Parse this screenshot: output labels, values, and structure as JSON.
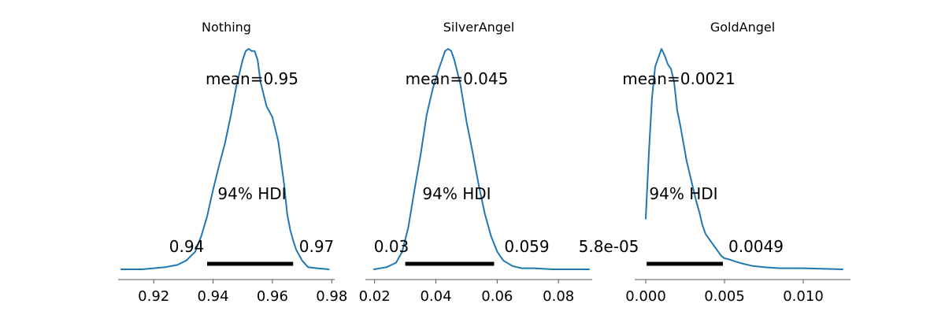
{
  "chart_data": [
    {
      "type": "line",
      "title": "Nothing",
      "color": "#1f77b4",
      "xlim": [
        0.908,
        0.981
      ],
      "xticks": [
        0.92,
        0.94,
        0.96,
        0.98
      ],
      "xtick_labels": [
        "0.92",
        "0.94",
        "0.96",
        "0.98"
      ],
      "mean_label": "mean=0.95",
      "hdi_label": "94% HDI",
      "hdi": [
        0.938,
        0.967
      ],
      "hdi_labels": [
        "0.94",
        "0.97"
      ],
      "density_max": 1.0,
      "series": [
        {
          "x": [
            0.909,
            0.912,
            0.916,
            0.92,
            0.924,
            0.928,
            0.931,
            0.934,
            0.936,
            0.938,
            0.94,
            0.942,
            0.944,
            0.946,
            0.948,
            0.95,
            0.951,
            0.952,
            0.953,
            0.954,
            0.955,
            0.956,
            0.958,
            0.96,
            0.962,
            0.963,
            0.964,
            0.965,
            0.966,
            0.967,
            0.968,
            0.97,
            0.972,
            0.975,
            0.979
          ],
          "y": [
            0.0,
            0.0,
            0.0,
            0.005,
            0.01,
            0.02,
            0.04,
            0.08,
            0.15,
            0.24,
            0.36,
            0.47,
            0.57,
            0.7,
            0.84,
            0.95,
            0.99,
            1.0,
            0.99,
            0.99,
            0.95,
            0.85,
            0.74,
            0.69,
            0.58,
            0.48,
            0.38,
            0.25,
            0.18,
            0.13,
            0.09,
            0.04,
            0.01,
            0.005,
            0.0
          ]
        }
      ]
    },
    {
      "type": "line",
      "title": "SilverAngel",
      "color": "#1f77b4",
      "xlim": [
        0.017,
        0.091
      ],
      "xticks": [
        0.02,
        0.04,
        0.06,
        0.08
      ],
      "xtick_labels": [
        "0.02",
        "0.04",
        "0.06",
        "0.08"
      ],
      "mean_label": "mean=0.045",
      "hdi_label": "94% HDI",
      "hdi": [
        0.03,
        0.059
      ],
      "hdi_labels": [
        "0.03",
        "0.059"
      ],
      "density_max": 1.0,
      "series": [
        {
          "x": [
            0.0198,
            0.024,
            0.027,
            0.029,
            0.031,
            0.033,
            0.035,
            0.037,
            0.039,
            0.041,
            0.043,
            0.044,
            0.045,
            0.046,
            0.048,
            0.05,
            0.052,
            0.054,
            0.056,
            0.058,
            0.06,
            0.062,
            0.065,
            0.068,
            0.072,
            0.078,
            0.09
          ],
          "y": [
            0.0,
            0.01,
            0.03,
            0.08,
            0.19,
            0.36,
            0.52,
            0.7,
            0.82,
            0.91,
            0.99,
            1.0,
            0.99,
            0.95,
            0.84,
            0.67,
            0.53,
            0.38,
            0.25,
            0.15,
            0.08,
            0.04,
            0.015,
            0.005,
            0.005,
            0.0,
            0.0
          ]
        }
      ]
    },
    {
      "type": "line",
      "title": "GoldAngel",
      "color": "#1f77b4",
      "xlim": [
        -0.0007,
        0.013
      ],
      "xticks": [
        0.0,
        0.005,
        0.01
      ],
      "xtick_labels": [
        "0.000",
        "0.005",
        "0.010"
      ],
      "mean_label": "mean=0.0021",
      "hdi_label": "94% HDI",
      "hdi": [
        5.81e-05,
        0.0049
      ],
      "hdi_labels": [
        "5.8e-05",
        "0.0049"
      ],
      "density_max": 1.0,
      "series": [
        {
          "x": [
            0.0,
            0.0002,
            0.0004,
            0.0006,
            0.0008,
            0.001,
            0.0012,
            0.0014,
            0.0016,
            0.0018,
            0.002,
            0.0022,
            0.0024,
            0.0026,
            0.0028,
            0.003,
            0.0032,
            0.0034,
            0.0036,
            0.0038,
            0.004,
            0.0042,
            0.0044,
            0.0046,
            0.0048,
            0.005,
            0.0053,
            0.0057,
            0.0062,
            0.0068,
            0.0075,
            0.0085,
            0.01,
            0.0125
          ],
          "y": [
            0.23,
            0.53,
            0.78,
            0.92,
            0.96,
            1.0,
            0.97,
            0.93,
            0.91,
            0.85,
            0.72,
            0.65,
            0.57,
            0.49,
            0.43,
            0.37,
            0.31,
            0.26,
            0.2,
            0.16,
            0.14,
            0.12,
            0.1,
            0.08,
            0.06,
            0.05,
            0.045,
            0.035,
            0.025,
            0.015,
            0.01,
            0.005,
            0.005,
            0.0
          ]
        }
      ]
    }
  ]
}
